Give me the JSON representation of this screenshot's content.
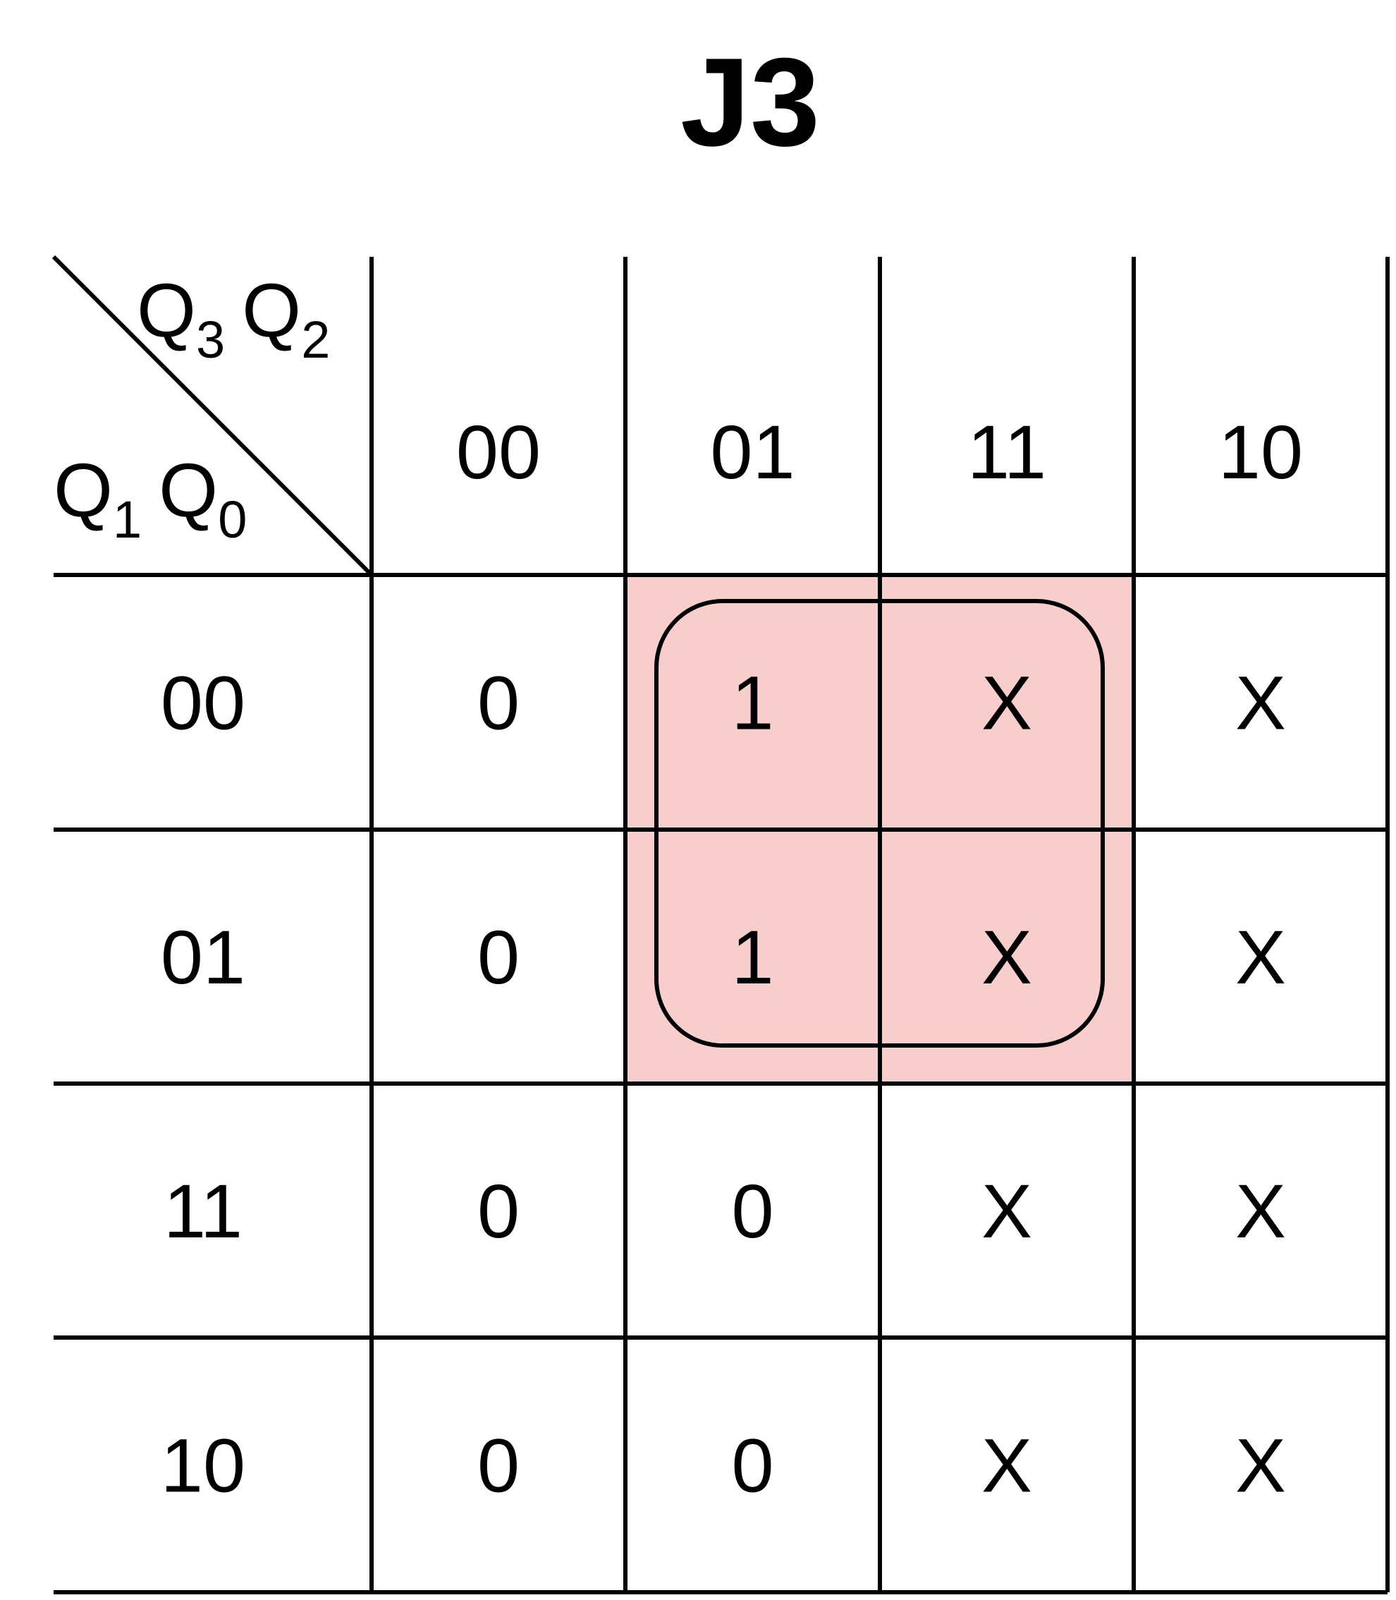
{
  "title": "J3",
  "corner": {
    "top_label": [
      {
        "base": "Q",
        "sub": "3"
      },
      {
        "base": "Q",
        "sub": "2"
      }
    ],
    "left_label": [
      {
        "base": "Q",
        "sub": "1"
      },
      {
        "base": "Q",
        "sub": "0"
      }
    ]
  },
  "column_headers": [
    "00",
    "01",
    "11",
    "10"
  ],
  "row_headers": [
    "00",
    "01",
    "11",
    "10"
  ],
  "cells": [
    [
      "0",
      "1",
      "X",
      "X"
    ],
    [
      "0",
      "1",
      "X",
      "X"
    ],
    [
      "0",
      "0",
      "X",
      "X"
    ],
    [
      "0",
      "0",
      "X",
      "X"
    ]
  ],
  "highlight": {
    "color": "#f8cecc",
    "rows": [
      0,
      1
    ],
    "cols": [
      1,
      2
    ]
  }
}
